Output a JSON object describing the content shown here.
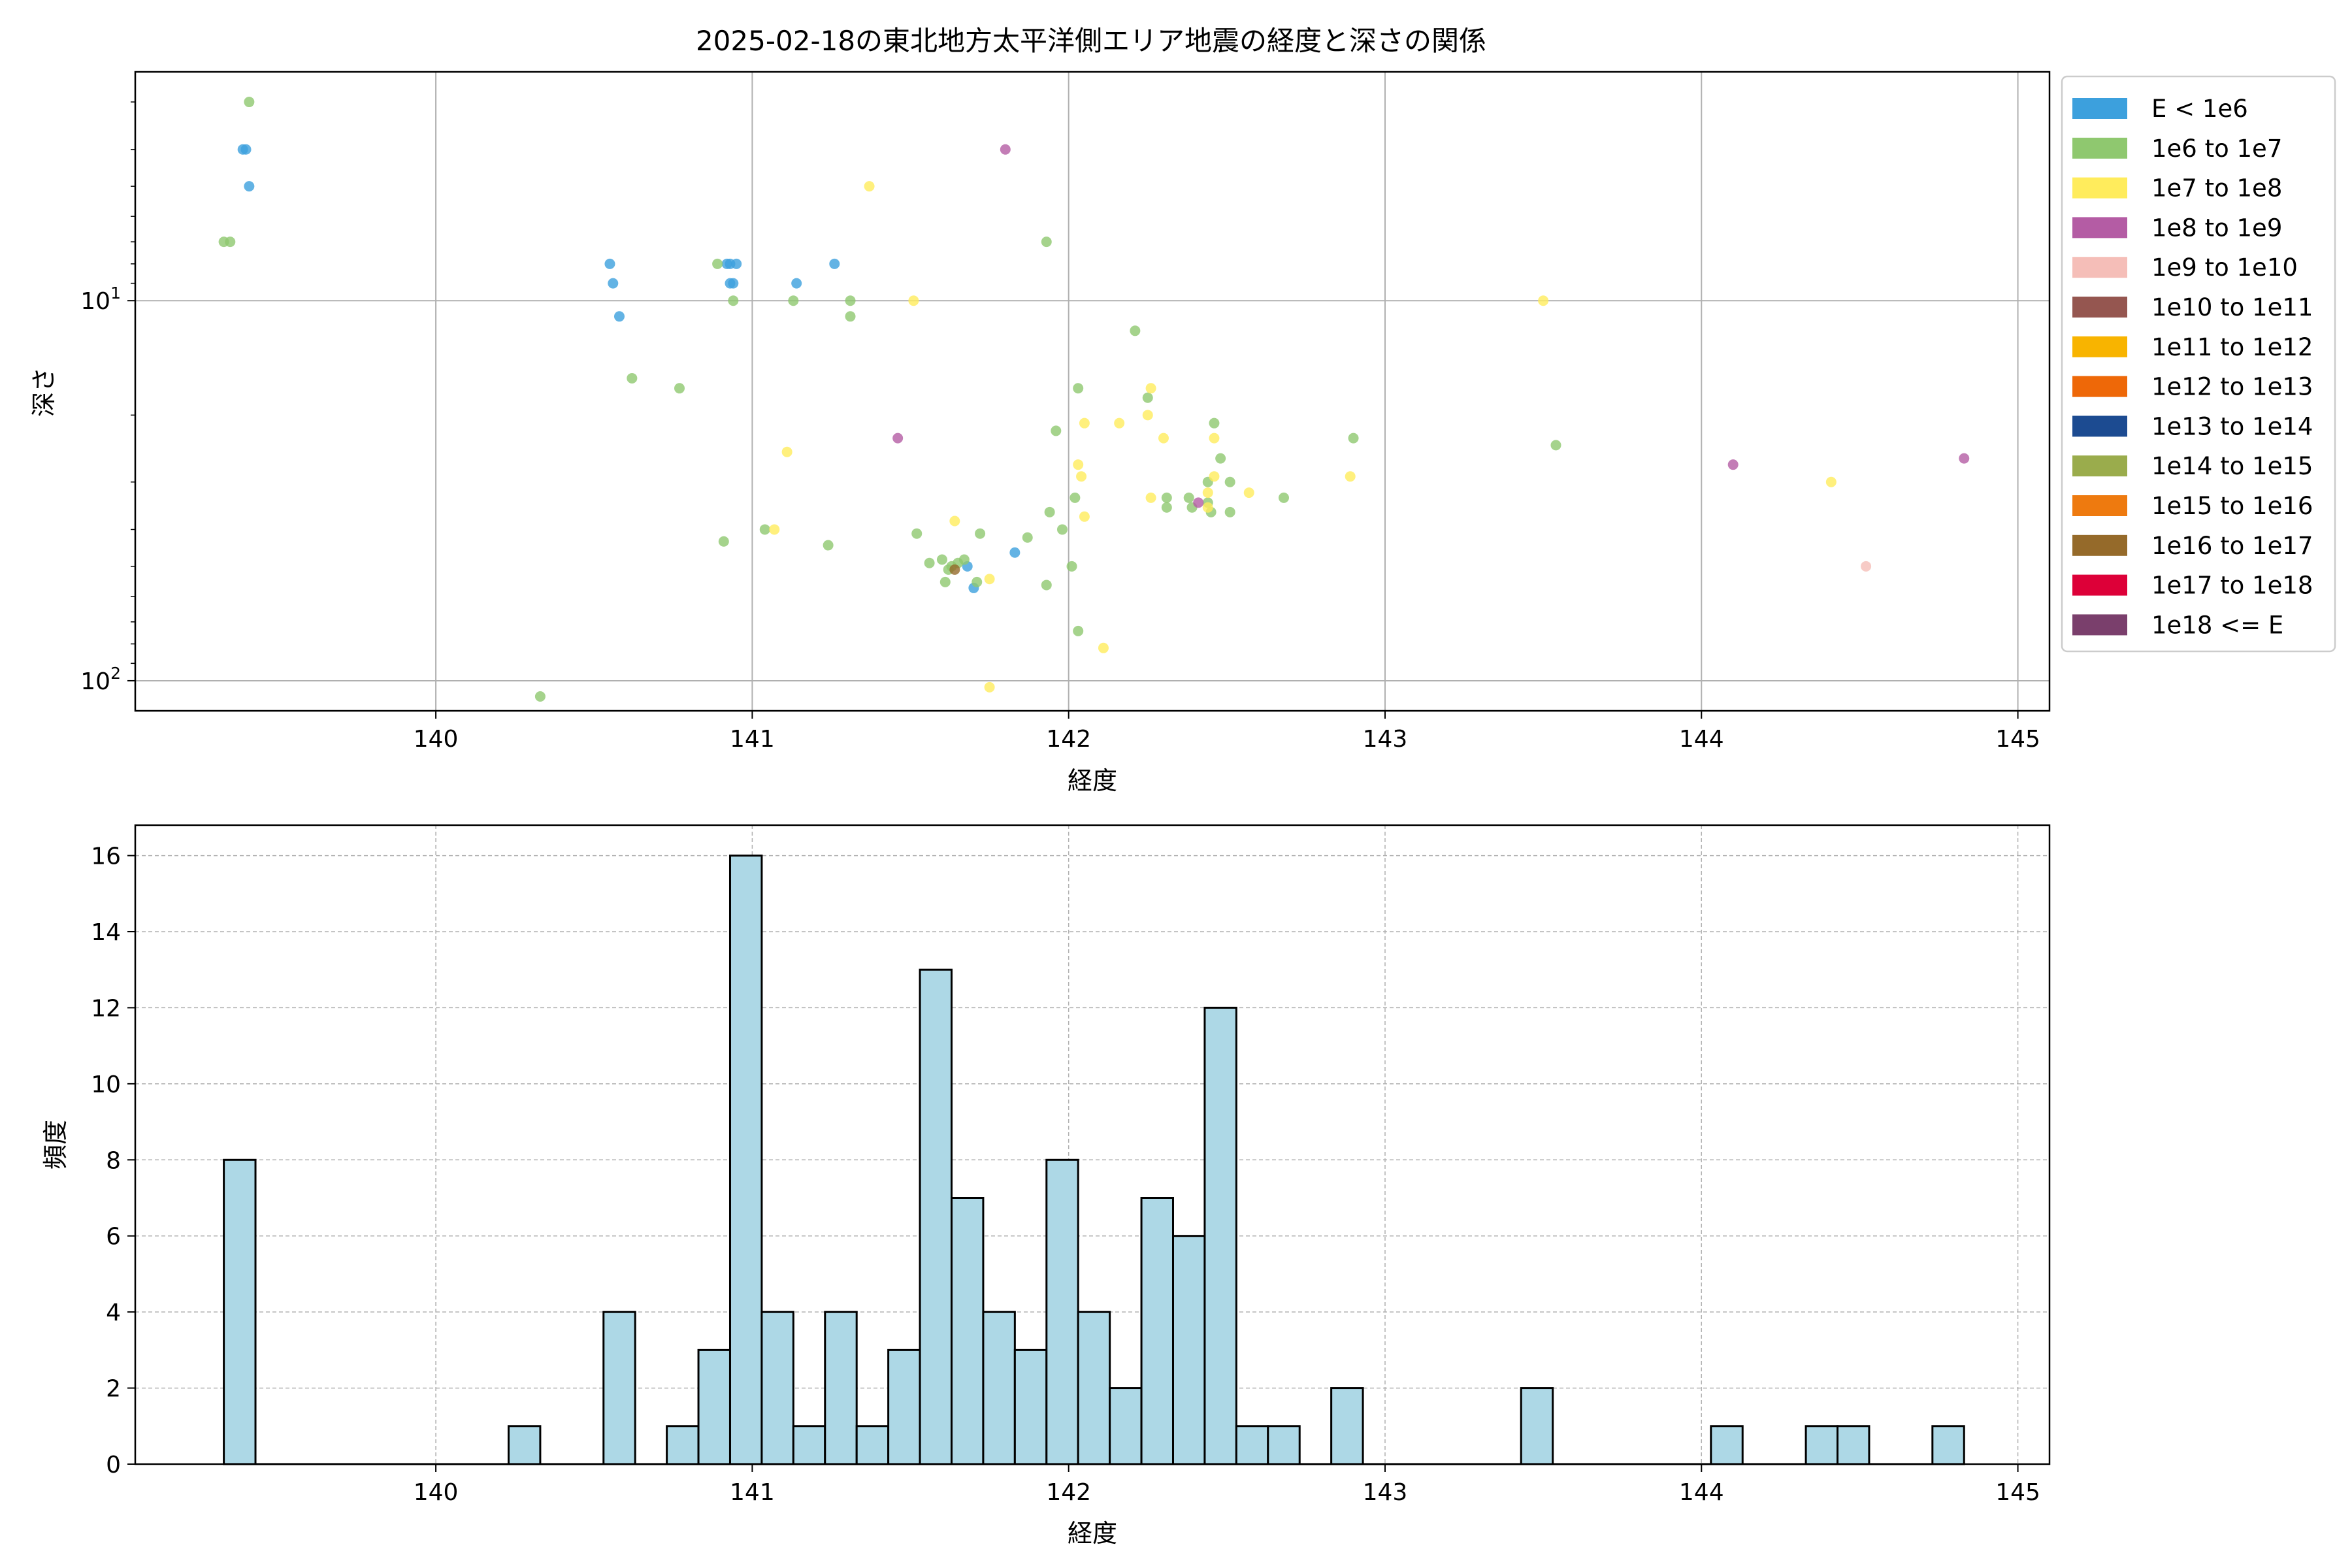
{
  "chart_data": [
    {
      "type": "scatter",
      "title": "2025-02-18の東北地方太平洋側エリア地震の経度と深さの関係",
      "xlabel": "経度",
      "ylabel": "深さ",
      "xlim": [
        139.05,
        145.1
      ],
      "ylim": [
        120,
        2.5
      ],
      "yscale": "log",
      "y_inverted": true,
      "grid": true,
      "legend_position": "outside-right",
      "x_ticks": [
        "140",
        "141",
        "142",
        "143",
        "144",
        "145"
      ],
      "y_ticks": [
        {
          "value": 10,
          "base": "10",
          "exp": "1"
        },
        {
          "value": 100,
          "base": "10",
          "exp": "2"
        }
      ],
      "legend": [
        {
          "label": "E < 1e6",
          "color": "#3ca0dd"
        },
        {
          "label": "1e6 to 1e7",
          "color": "#8fc86f"
        },
        {
          "label": "1e7 to 1e8",
          "color": "#ffec5c"
        },
        {
          "label": "1e8 to 1e9",
          "color": "#b45ca4"
        },
        {
          "label": "1e9 to 1e10",
          "color": "#f5beb8"
        },
        {
          "label": "1e10 to 1e11",
          "color": "#955650"
        },
        {
          "label": "1e11 to 1e12",
          "color": "#f8b400"
        },
        {
          "label": "1e12 to 1e13",
          "color": "#ee6808"
        },
        {
          "label": "1e13 to 1e14",
          "color": "#1c4b91"
        },
        {
          "label": "1e14 to 1e15",
          "color": "#9aac4c"
        },
        {
          "label": "1e15 to 1e16",
          "color": "#ee7a0f"
        },
        {
          "label": "1e16 to 1e17",
          "color": "#956a2a"
        },
        {
          "label": "1e17 to 1e18",
          "color": "#dd0038"
        },
        {
          "label": "1e18 <= E",
          "color": "#7a3f6c"
        }
      ],
      "series": [
        {
          "name": "E < 1e6",
          "color": "#3ca0dd",
          "points": [
            [
              139.39,
              4
            ],
            [
              139.4,
              4
            ],
            [
              139.41,
              5
            ],
            [
              140.55,
              8
            ],
            [
              140.56,
              9
            ],
            [
              140.58,
              11
            ],
            [
              140.92,
              8
            ],
            [
              140.93,
              8
            ],
            [
              140.94,
              9
            ],
            [
              140.95,
              8
            ],
            [
              140.93,
              9
            ],
            [
              141.14,
              9
            ],
            [
              141.26,
              8
            ],
            [
              141.68,
              50
            ],
            [
              141.7,
              57
            ],
            [
              141.83,
              46
            ]
          ]
        },
        {
          "name": "1e6 to 1e7",
          "color": "#8fc86f",
          "points": [
            [
              139.33,
              7
            ],
            [
              139.35,
              7
            ],
            [
              139.41,
              3
            ],
            [
              140.33,
              110
            ],
            [
              140.62,
              16
            ],
            [
              140.77,
              17
            ],
            [
              140.89,
              8
            ],
            [
              140.91,
              43
            ],
            [
              140.94,
              10
            ],
            [
              141.04,
              40
            ],
            [
              141.13,
              10
            ],
            [
              141.24,
              44
            ],
            [
              141.31,
              10
            ],
            [
              141.31,
              11
            ],
            [
              141.52,
              41
            ],
            [
              141.56,
              49
            ],
            [
              141.6,
              48
            ],
            [
              141.61,
              55
            ],
            [
              141.62,
              51
            ],
            [
              141.63,
              50
            ],
            [
              141.65,
              49
            ],
            [
              141.67,
              48
            ],
            [
              141.71,
              55
            ],
            [
              141.72,
              41
            ],
            [
              141.87,
              42
            ],
            [
              141.93,
              56
            ],
            [
              141.93,
              7
            ],
            [
              141.94,
              36
            ],
            [
              141.96,
              22
            ],
            [
              141.98,
              40
            ],
            [
              142.01,
              50
            ],
            [
              142.02,
              33
            ],
            [
              142.03,
              17
            ],
            [
              142.03,
              74
            ],
            [
              142.21,
              12
            ],
            [
              142.25,
              18
            ],
            [
              142.31,
              33
            ],
            [
              142.31,
              35
            ],
            [
              142.38,
              33
            ],
            [
              142.39,
              35
            ],
            [
              142.44,
              34
            ],
            [
              142.44,
              30
            ],
            [
              142.45,
              36
            ],
            [
              142.46,
              21
            ],
            [
              142.48,
              26
            ],
            [
              142.51,
              36
            ],
            [
              142.51,
              30
            ],
            [
              142.68,
              33
            ],
            [
              142.9,
              23
            ],
            [
              143.54,
              24
            ]
          ]
        },
        {
          "name": "1e7 to 1e8",
          "color": "#ffec5c",
          "points": [
            [
              141.07,
              40
            ],
            [
              141.11,
              25
            ],
            [
              141.37,
              5
            ],
            [
              141.51,
              10
            ],
            [
              141.64,
              38
            ],
            [
              141.75,
              54
            ],
            [
              141.75,
              104
            ],
            [
              142.03,
              27
            ],
            [
              142.04,
              29
            ],
            [
              142.05,
              21
            ],
            [
              142.05,
              37
            ],
            [
              142.11,
              82
            ],
            [
              142.16,
              21
            ],
            [
              142.25,
              20
            ],
            [
              142.26,
              17
            ],
            [
              142.26,
              33
            ],
            [
              142.3,
              23
            ],
            [
              142.44,
              35
            ],
            [
              142.44,
              32
            ],
            [
              142.46,
              29
            ],
            [
              142.46,
              23
            ],
            [
              142.57,
              32
            ],
            [
              142.89,
              29
            ],
            [
              143.5,
              10
            ],
            [
              144.41,
              30
            ]
          ]
        },
        {
          "name": "1e8 to 1e9",
          "color": "#b45ca4",
          "points": [
            [
              141.46,
              23
            ],
            [
              141.8,
              4
            ],
            [
              142.41,
              34
            ],
            [
              144.1,
              27
            ],
            [
              144.83,
              26
            ]
          ]
        },
        {
          "name": "1e9 to 1e10",
          "color": "#f5beb8",
          "points": [
            [
              144.52,
              50
            ]
          ]
        },
        {
          "name": "1e16 to 1e17",
          "color": "#956a2a",
          "points": [
            [
              141.64,
              51
            ]
          ]
        }
      ]
    },
    {
      "type": "bar",
      "subtype": "histogram",
      "xlabel": "経度",
      "ylabel": "頻度",
      "xlim": [
        139.05,
        145.1
      ],
      "ylim": [
        0,
        16.8
      ],
      "grid": true,
      "bar_color": "#add8e6",
      "bin_width": 0.1,
      "x_ticks": [
        "140",
        "141",
        "142",
        "143",
        "144",
        "145"
      ],
      "y_ticks": [
        "0",
        "2",
        "4",
        "6",
        "8",
        "10",
        "12",
        "14",
        "16"
      ],
      "bins": [
        {
          "x": 139.33,
          "count": 8
        },
        {
          "x": 140.23,
          "count": 1
        },
        {
          "x": 140.53,
          "count": 4
        },
        {
          "x": 140.73,
          "count": 1
        },
        {
          "x": 140.83,
          "count": 3
        },
        {
          "x": 140.93,
          "count": 16
        },
        {
          "x": 141.03,
          "count": 4
        },
        {
          "x": 141.13,
          "count": 1
        },
        {
          "x": 141.23,
          "count": 4
        },
        {
          "x": 141.33,
          "count": 1
        },
        {
          "x": 141.43,
          "count": 3
        },
        {
          "x": 141.53,
          "count": 13
        },
        {
          "x": 141.63,
          "count": 7
        },
        {
          "x": 141.73,
          "count": 4
        },
        {
          "x": 141.83,
          "count": 3
        },
        {
          "x": 141.93,
          "count": 8
        },
        {
          "x": 142.03,
          "count": 4
        },
        {
          "x": 142.13,
          "count": 2
        },
        {
          "x": 142.23,
          "count": 7
        },
        {
          "x": 142.33,
          "count": 6
        },
        {
          "x": 142.43,
          "count": 12
        },
        {
          "x": 142.53,
          "count": 1
        },
        {
          "x": 142.63,
          "count": 1
        },
        {
          "x": 142.83,
          "count": 2
        },
        {
          "x": 143.43,
          "count": 2
        },
        {
          "x": 144.03,
          "count": 1
        },
        {
          "x": 144.33,
          "count": 1
        },
        {
          "x": 144.43,
          "count": 1
        },
        {
          "x": 144.73,
          "count": 1
        }
      ]
    }
  ]
}
